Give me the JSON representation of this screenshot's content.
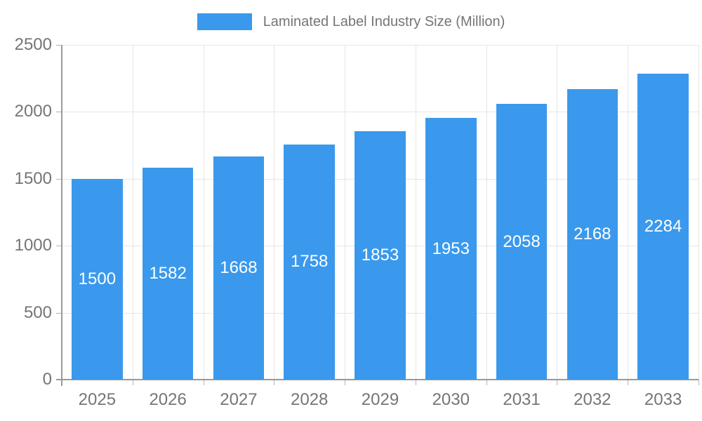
{
  "legend": {
    "label": "Laminated Label Industry Size (Million)"
  },
  "chart_data": {
    "type": "bar",
    "title": "Laminated Label Industry Size (Million)",
    "categories": [
      "2025",
      "2026",
      "2027",
      "2028",
      "2029",
      "2030",
      "2031",
      "2032",
      "2033"
    ],
    "values": [
      1500,
      1582,
      1668,
      1758,
      1853,
      1953,
      2058,
      2168,
      2284
    ],
    "xlabel": "",
    "ylabel": "",
    "ylim": [
      0,
      2500
    ],
    "y_ticks": [
      0,
      500,
      1000,
      1500,
      2000,
      2500
    ],
    "grid": true,
    "legend_position": "top",
    "bar_color": "#3A99EC",
    "value_label_color": "#FFFFFF",
    "colors": {
      "grid": "#E6E6E6",
      "axis": "#999999",
      "tick": "#B3B3B3",
      "text": "#757575"
    }
  }
}
